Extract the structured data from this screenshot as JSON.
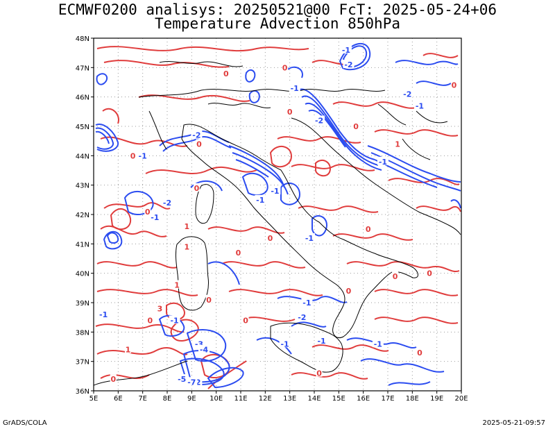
{
  "header": {
    "title_line1": "ECMWF0200 analisys: 20250521@00 FcT: 2025-05-24+06",
    "title_line2": "Temperature Advection 850hPa"
  },
  "footer": {
    "left": "GrADS/COLA",
    "right": "2025-05-21-09:57"
  },
  "map": {
    "lon_range": [
      5,
      20
    ],
    "lat_range": [
      36,
      48
    ],
    "lon_labels": [
      "5E",
      "6E",
      "7E",
      "8E",
      "9E",
      "10E",
      "11E",
      "12E",
      "13E",
      "14E",
      "15E",
      "16E",
      "17E",
      "18E",
      "19E",
      "20E"
    ],
    "lat_labels": [
      "36N",
      "37N",
      "38N",
      "39N",
      "40N",
      "41N",
      "42N",
      "43N",
      "44N",
      "45N",
      "46N",
      "47N",
      "48N"
    ],
    "colors": {
      "positive": "#e03c3c",
      "negative": "#2b4cf0",
      "coast": "#000000",
      "grid": "#999999"
    },
    "contour_labels": [
      {
        "text": "-1",
        "lon": 15.3,
        "lat": 47.6,
        "sign": "neg"
      },
      {
        "text": "-2",
        "lon": 15.4,
        "lat": 47.1,
        "sign": "neg"
      },
      {
        "text": "-1",
        "lon": 13.2,
        "lat": 46.3,
        "sign": "neg"
      },
      {
        "text": "-2",
        "lon": 9.2,
        "lat": 44.7,
        "sign": "neg"
      },
      {
        "text": "-1",
        "lon": 7.0,
        "lat": 44.0,
        "sign": "neg"
      },
      {
        "text": "-1",
        "lon": 7.5,
        "lat": 41.9,
        "sign": "neg"
      },
      {
        "text": "-2",
        "lon": 8.0,
        "lat": 42.4,
        "sign": "neg"
      },
      {
        "text": "-1",
        "lon": 11.8,
        "lat": 42.5,
        "sign": "neg"
      },
      {
        "text": "-1",
        "lon": 12.4,
        "lat": 42.8,
        "sign": "neg"
      },
      {
        "text": "-2",
        "lon": 14.2,
        "lat": 45.2,
        "sign": "neg"
      },
      {
        "text": "-1",
        "lon": 16.8,
        "lat": 43.8,
        "sign": "neg"
      },
      {
        "text": "-2",
        "lon": 17.8,
        "lat": 46.1,
        "sign": "neg"
      },
      {
        "text": "-1",
        "lon": 18.3,
        "lat": 45.7,
        "sign": "neg"
      },
      {
        "text": "-1",
        "lon": 13.7,
        "lat": 39.0,
        "sign": "neg"
      },
      {
        "text": "-2",
        "lon": 13.5,
        "lat": 38.5,
        "sign": "neg"
      },
      {
        "text": "-1",
        "lon": 12.8,
        "lat": 37.6,
        "sign": "neg"
      },
      {
        "text": "-1",
        "lon": 14.3,
        "lat": 37.7,
        "sign": "neg"
      },
      {
        "text": "-1",
        "lon": 16.6,
        "lat": 37.6,
        "sign": "neg"
      },
      {
        "text": "-1",
        "lon": 5.4,
        "lat": 38.6,
        "sign": "neg"
      },
      {
        "text": "-1",
        "lon": 13.8,
        "lat": 41.2,
        "sign": "neg"
      },
      {
        "text": "-3",
        "lon": 9.3,
        "lat": 37.6,
        "sign": "neg"
      },
      {
        "text": "-4",
        "lon": 9.5,
        "lat": 37.4,
        "sign": "neg"
      },
      {
        "text": "-2",
        "lon": 9.2,
        "lat": 36.3,
        "sign": "neg"
      },
      {
        "text": "-7",
        "lon": 9.0,
        "lat": 36.3,
        "sign": "neg"
      },
      {
        "text": "-5",
        "lon": 8.6,
        "lat": 36.4,
        "sign": "neg"
      },
      {
        "text": "-1",
        "lon": 8.3,
        "lat": 38.4,
        "sign": "neg"
      },
      {
        "text": "0",
        "lon": 5.8,
        "lat": 36.4,
        "sign": "pos"
      },
      {
        "text": "0",
        "lon": 7.2,
        "lat": 42.1,
        "sign": "pos"
      },
      {
        "text": "0",
        "lon": 9.2,
        "lat": 42.9,
        "sign": "pos"
      },
      {
        "text": "1",
        "lon": 8.8,
        "lat": 40.9,
        "sign": "pos"
      },
      {
        "text": "0",
        "lon": 10.9,
        "lat": 40.7,
        "sign": "pos"
      },
      {
        "text": "0",
        "lon": 12.2,
        "lat": 41.2,
        "sign": "pos"
      },
      {
        "text": "0",
        "lon": 9.7,
        "lat": 39.1,
        "sign": "pos"
      },
      {
        "text": "1",
        "lon": 8.4,
        "lat": 39.6,
        "sign": "pos"
      },
      {
        "text": "3",
        "lon": 7.7,
        "lat": 38.8,
        "sign": "pos"
      },
      {
        "text": "0",
        "lon": 7.3,
        "lat": 38.4,
        "sign": "pos"
      },
      {
        "text": "1",
        "lon": 6.4,
        "lat": 37.4,
        "sign": "pos"
      },
      {
        "text": "0",
        "lon": 11.2,
        "lat": 38.4,
        "sign": "pos"
      },
      {
        "text": "0",
        "lon": 15.4,
        "lat": 39.4,
        "sign": "pos"
      },
      {
        "text": "0",
        "lon": 16.2,
        "lat": 41.5,
        "sign": "pos"
      },
      {
        "text": "0",
        "lon": 17.3,
        "lat": 39.9,
        "sign": "pos"
      },
      {
        "text": "0",
        "lon": 18.7,
        "lat": 40.0,
        "sign": "pos"
      },
      {
        "text": "0",
        "lon": 6.6,
        "lat": 44.0,
        "sign": "pos"
      },
      {
        "text": "0",
        "lon": 9.3,
        "lat": 44.4,
        "sign": "pos"
      },
      {
        "text": "0",
        "lon": 13.0,
        "lat": 45.5,
        "sign": "pos"
      },
      {
        "text": "0",
        "lon": 10.4,
        "lat": 46.8,
        "sign": "pos"
      },
      {
        "text": "0",
        "lon": 15.7,
        "lat": 45.0,
        "sign": "pos"
      },
      {
        "text": "1",
        "lon": 17.4,
        "lat": 44.4,
        "sign": "pos"
      },
      {
        "text": "0",
        "lon": 19.7,
        "lat": 46.4,
        "sign": "pos"
      },
      {
        "text": "0",
        "lon": 12.8,
        "lat": 47.0,
        "sign": "pos"
      },
      {
        "text": "1",
        "lon": 8.8,
        "lat": 41.6,
        "sign": "pos"
      },
      {
        "text": "0",
        "lon": 18.3,
        "lat": 37.3,
        "sign": "pos"
      },
      {
        "text": "0",
        "lon": 14.2,
        "lat": 36.6,
        "sign": "pos"
      }
    ]
  }
}
